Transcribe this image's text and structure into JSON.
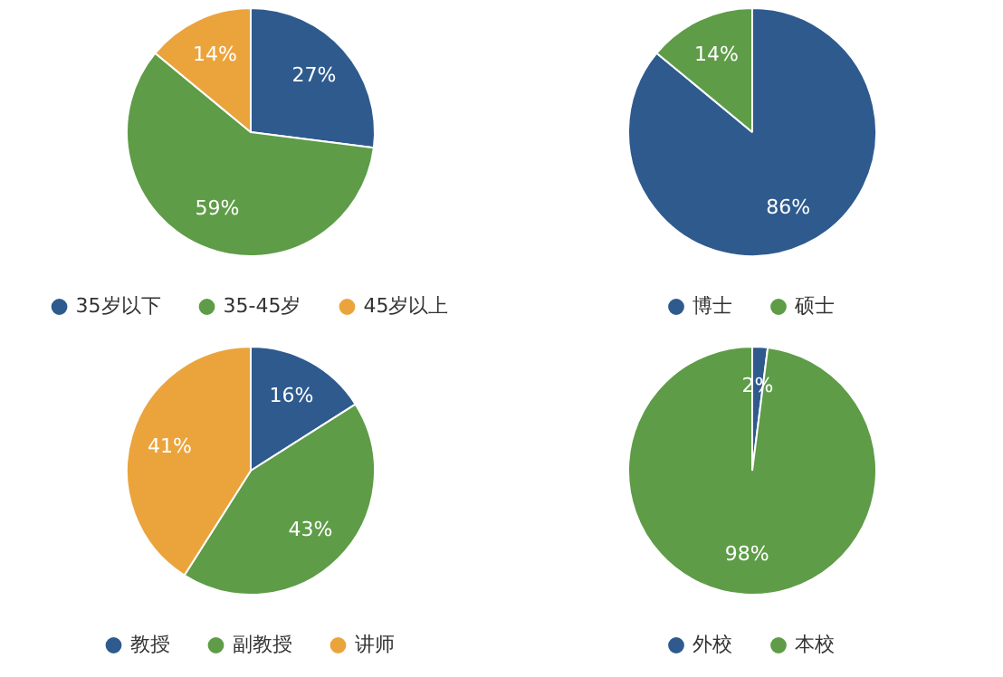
{
  "chart_data": [
    {
      "type": "pie",
      "categories": [
        "35岁以下",
        "35-45岁",
        "45岁以上"
      ],
      "values": [
        27,
        59,
        14
      ],
      "colors": [
        "#2e5a8e",
        "#5e9c47",
        "#eba43c"
      ],
      "value_labels": [
        "27%",
        "59%",
        "14%"
      ],
      "legend": "bottom"
    },
    {
      "type": "pie",
      "categories": [
        "博士",
        "硕士"
      ],
      "values": [
        86,
        14
      ],
      "colors": [
        "#2e5a8e",
        "#5e9c47"
      ],
      "value_labels": [
        "86%",
        "14%"
      ],
      "legend": "bottom"
    },
    {
      "type": "pie",
      "categories": [
        "教授",
        "副教授",
        "讲师"
      ],
      "values": [
        16,
        43,
        41
      ],
      "colors": [
        "#2e5a8e",
        "#5e9c47",
        "#eba43c"
      ],
      "value_labels": [
        "16%",
        "43%",
        "41%"
      ],
      "legend": "bottom"
    },
    {
      "type": "pie",
      "categories": [
        "外校",
        "本校"
      ],
      "values": [
        2,
        98
      ],
      "colors": [
        "#2e5a8e",
        "#5e9c47"
      ],
      "value_labels": [
        "2%",
        "98%"
      ],
      "legend": "bottom"
    }
  ]
}
